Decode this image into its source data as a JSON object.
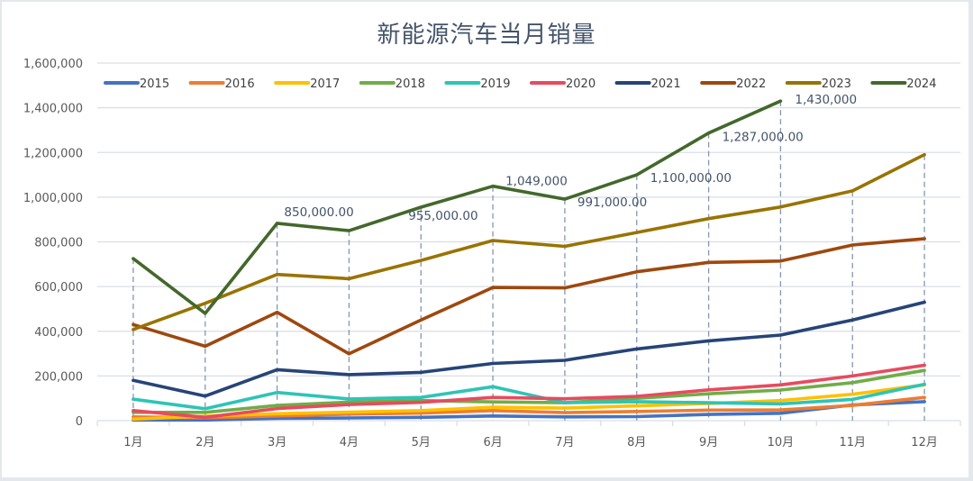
{
  "chart_data": {
    "type": "line",
    "title": "新能源汽车当月销量",
    "xlabel": "",
    "ylabel": "",
    "categories": [
      "1月",
      "2月",
      "3月",
      "4月",
      "5月",
      "6月",
      "7月",
      "8月",
      "9月",
      "10月",
      "11月",
      "12月"
    ],
    "ylim": [
      0,
      1600000
    ],
    "yticks": [
      0,
      200000,
      400000,
      600000,
      800000,
      1000000,
      1200000,
      1400000,
      1600000
    ],
    "ytick_labels": [
      "0",
      "200,000",
      "400,000",
      "600,000",
      "800,000",
      "1,000,000",
      "1,200,000",
      "1,400,000",
      "1,600,000"
    ],
    "grid": true,
    "legend_position": "top",
    "drop_lines": true,
    "series": [
      {
        "name": "2015",
        "color": "#4472c4",
        "values": [
          3000,
          3000,
          10000,
          12000,
          15000,
          21000,
          17000,
          18000,
          28000,
          33000,
          70000,
          85000
        ]
      },
      {
        "name": "2016",
        "color": "#ed7d31",
        "values": [
          17000,
          13000,
          21000,
          29000,
          34000,
          45000,
          36000,
          41000,
          47000,
          48000,
          68000,
          104000
        ]
      },
      {
        "name": "2017",
        "color": "#ffc000",
        "values": [
          7000,
          20000,
          31000,
          38000,
          45000,
          60000,
          56000,
          66000,
          77000,
          90000,
          118000,
          160000
        ]
      },
      {
        "name": "2018",
        "color": "#70ad47",
        "values": [
          37000,
          37000,
          68000,
          83000,
          90000,
          84000,
          80000,
          100000,
          120000,
          137000,
          170000,
          225000
        ]
      },
      {
        "name": "2019",
        "color": "#2ec4b6",
        "values": [
          96000,
          53000,
          126000,
          97000,
          104000,
          152000,
          80000,
          85000,
          80000,
          75000,
          95000,
          163000
        ]
      },
      {
        "name": "2020",
        "color": "#e84a5f",
        "values": [
          45000,
          15000,
          54000,
          72000,
          82000,
          104000,
          98000,
          109000,
          138000,
          160000,
          200000,
          248000
        ]
      },
      {
        "name": "2021",
        "color": "#264478",
        "values": [
          180000,
          110000,
          228000,
          206000,
          216000,
          256000,
          270000,
          321000,
          357000,
          383000,
          450000,
          530000
        ]
      },
      {
        "name": "2022",
        "color": "#9e480e",
        "values": [
          430000,
          333000,
          485000,
          299000,
          450000,
          596000,
          594000,
          666000,
          708000,
          714000,
          786000,
          814000
        ]
      },
      {
        "name": "2023",
        "color": "#997300",
        "values": [
          408000,
          525000,
          654000,
          635000,
          717000,
          806000,
          780000,
          842000,
          904000,
          956000,
          1028000,
          1190000
        ]
      },
      {
        "name": "2024",
        "color": "#43682b",
        "values": [
          725000,
          480000,
          883000,
          850000,
          955000,
          1049000,
          991000,
          1100000,
          1287000,
          1430000,
          null,
          null
        ]
      }
    ],
    "annotations": [
      {
        "series": "2024",
        "category": "4月",
        "text": "850,000.00"
      },
      {
        "series": "2024",
        "category": "5月",
        "text": "955,000.00"
      },
      {
        "series": "2024",
        "category": "6月",
        "text": "1,049,000"
      },
      {
        "series": "2024",
        "category": "7月",
        "text": "991,000.00"
      },
      {
        "series": "2024",
        "category": "8月",
        "text": "1,100,000.00"
      },
      {
        "series": "2024",
        "category": "9月",
        "text": "1,287,000.00"
      },
      {
        "series": "2024",
        "category": "10月",
        "text": "1,430,000"
      }
    ],
    "colors": {
      "grid": "#d9dee6",
      "dropline": "#8497b0",
      "axis_text": "#595959",
      "title": "#44546a"
    }
  }
}
